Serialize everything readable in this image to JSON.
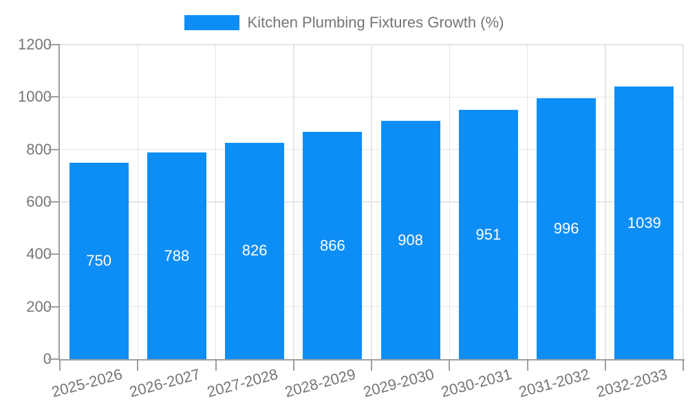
{
  "legend": {
    "swatch_color": "#0d8ef7",
    "label": "Kitchen Plumbing Fixtures Growth (%)"
  },
  "chart_data": {
    "type": "bar",
    "title": "Kitchen Plumbing Fixtures Growth (%)",
    "categories": [
      "2025-2026",
      "2026-2027",
      "2027-2028",
      "2028-2029",
      "2029-2030",
      "2030-2031",
      "2031-2032",
      "2032-2033"
    ],
    "values": [
      750,
      788,
      826,
      866,
      908,
      951,
      996,
      1039
    ],
    "value_labels": [
      "750",
      "788",
      "826",
      "866",
      "908",
      "951",
      "996",
      "1039"
    ],
    "xlabel": "",
    "ylabel": "",
    "ylim": [
      0,
      1200
    ],
    "yticks": [
      0,
      200,
      400,
      600,
      800,
      1000,
      1200
    ],
    "grid": true,
    "legend_position": "top",
    "bar_color": "#0d8ef7",
    "value_label_color": "#ffffff",
    "axis_color": "#9e9e9e",
    "grid_color": "#e5e5e5",
    "text_color": "#757575"
  }
}
